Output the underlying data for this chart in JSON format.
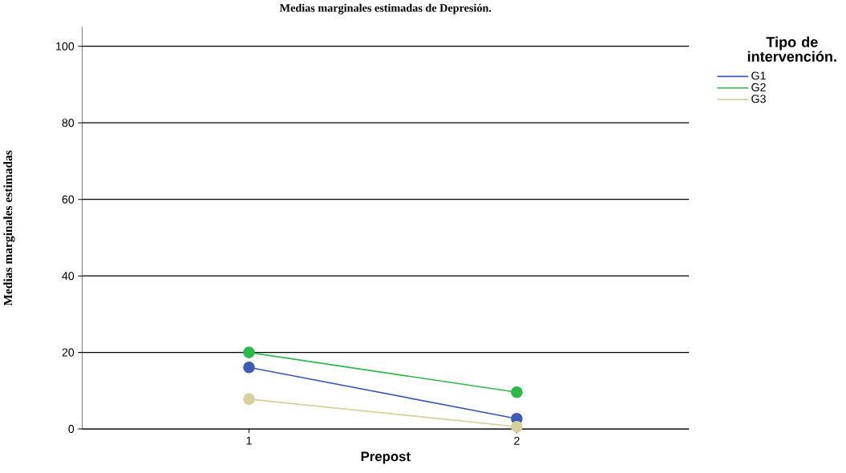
{
  "chart_data": {
    "type": "line",
    "title": "Medias marginales estimadas de Depresión.",
    "xlabel": "Prepost",
    "ylabel": "Medias marginales estimadas",
    "legend_title": "Tipo de intervención.",
    "categories": [
      "1",
      "2"
    ],
    "series": [
      {
        "name": "G1",
        "color": "#3e5bb4",
        "values": [
          16.1,
          2.7
        ]
      },
      {
        "name": "G2",
        "color": "#2fb84a",
        "values": [
          20.0,
          9.6
        ]
      },
      {
        "name": "G3",
        "color": "#d8cf9a",
        "values": [
          7.8,
          0.6
        ]
      }
    ],
    "ylim": [
      0,
      105
    ],
    "yticks": [
      0,
      20,
      40,
      60,
      80,
      100
    ],
    "grid": "y",
    "legend": "top right",
    "marker": "circle",
    "line_style": "solid"
  }
}
